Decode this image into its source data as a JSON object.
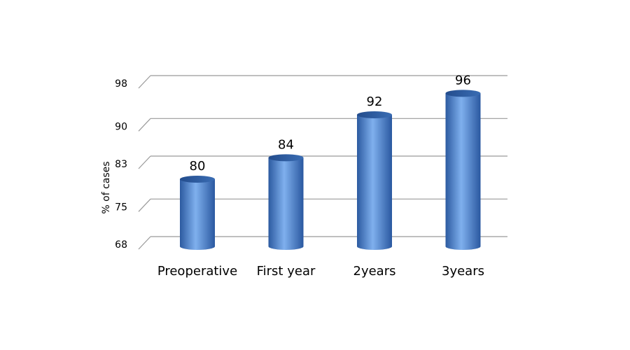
{
  "chart_data": {
    "type": "bar",
    "y_label": "% of cases",
    "categories": [
      "Preoperative",
      "First year",
      "2years",
      "3years"
    ],
    "values": [
      80,
      84,
      92,
      96
    ],
    "color": "#4a7fc8",
    "ylim": [
      68,
      98
    ],
    "yticks": [
      68,
      75,
      83,
      90,
      98
    ],
    "grid": true
  }
}
